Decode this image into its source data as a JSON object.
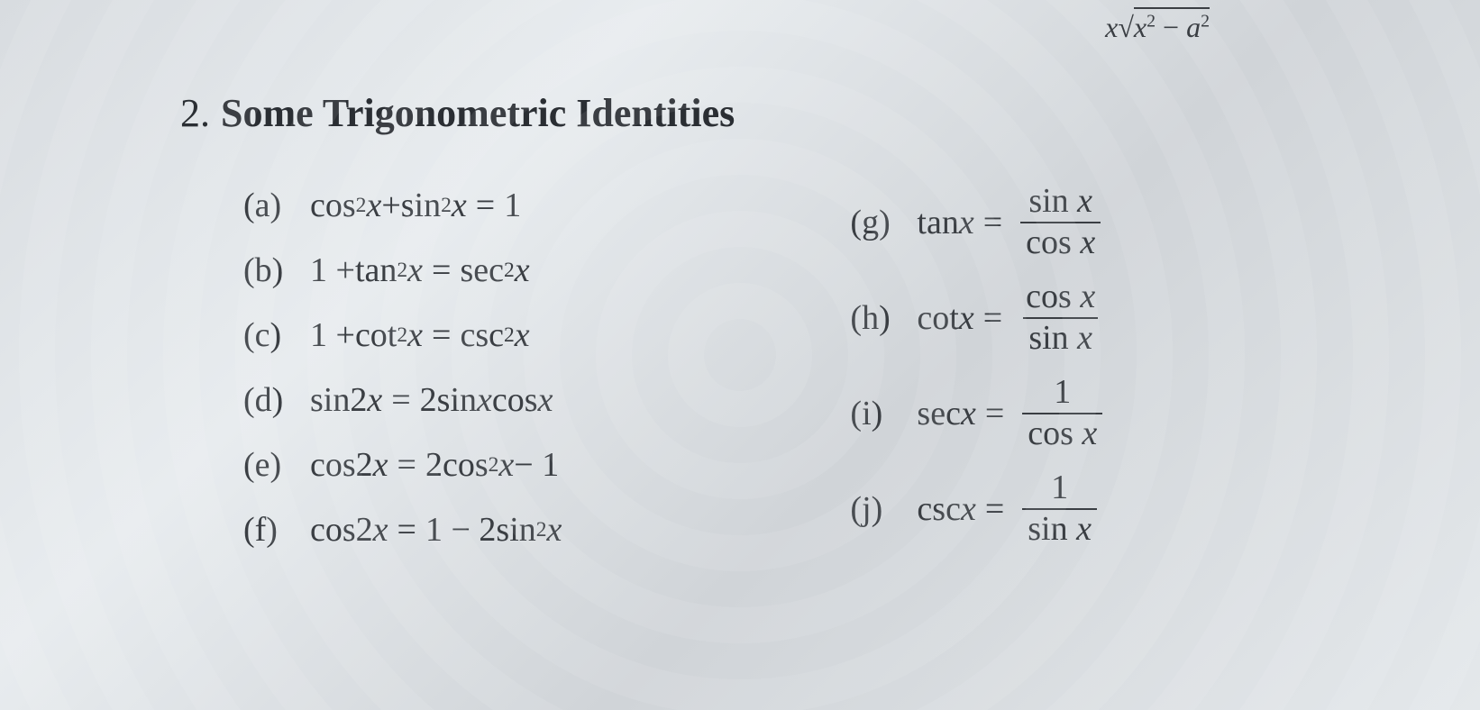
{
  "top_fragment": {
    "prefix_var": "x",
    "inner_var": "x",
    "inner_exp": "2",
    "minus": "−",
    "a_var": "a",
    "a_exp": "2"
  },
  "section": {
    "number": "2.",
    "title": "Some Trigonometric Identities"
  },
  "left_items": [
    {
      "label": "(a)",
      "lhs_a": "cos",
      "lhs_a_exp": "2",
      "lhs_a_var": "x",
      "plus": " + ",
      "lhs_b": "sin",
      "lhs_b_exp": "2",
      "lhs_b_var": "x",
      "eq": " = ",
      "rhs": "1"
    },
    {
      "label": "(b)",
      "lhs_const": "1 + ",
      "lhs_a": "tan",
      "lhs_a_exp": "2",
      "lhs_a_var": "x",
      "eq": " = ",
      "rhs_fn": "sec",
      "rhs_exp": "2",
      "rhs_var": "x"
    },
    {
      "label": "(c)",
      "lhs_const": "1 + ",
      "lhs_a": "cot",
      "lhs_a_exp": "2",
      "lhs_a_var": "x",
      "eq": " = ",
      "rhs_fn": "csc",
      "rhs_exp": "2",
      "rhs_var": "x"
    },
    {
      "label": "(d)",
      "lhs_fn": "sin",
      "lhs_arg": " 2",
      "lhs_var": "x",
      "eq": " = ",
      "rhs_coef": "2 ",
      "rhs_a": "sin ",
      "rhs_a_var": "x",
      "rhs_b": " cos ",
      "rhs_b_var": "x"
    },
    {
      "label": "(e)",
      "lhs_fn": "cos",
      "lhs_arg": " 2",
      "lhs_var": "x",
      "eq": " = ",
      "rhs_coef": "2 ",
      "rhs_fn": "cos",
      "rhs_exp": "2",
      "rhs_var": "x",
      "rhs_tail": " − 1"
    },
    {
      "label": "(f)",
      "lhs_fn": "cos",
      "lhs_arg": " 2",
      "lhs_var": "x",
      "eq": " = ",
      "rhs_pre": "1 − 2 ",
      "rhs_fn": "sin",
      "rhs_exp": "2",
      "rhs_var": "x"
    }
  ],
  "right_items": [
    {
      "label": "(g)",
      "lhs_fn": "tan ",
      "lhs_var": "x",
      "eq": " = ",
      "num_fn": "sin ",
      "num_var": "x",
      "den_fn": "cos ",
      "den_var": "x"
    },
    {
      "label": "(h)",
      "lhs_fn": "cot ",
      "lhs_var": "x",
      "eq": " = ",
      "num_fn": "cos ",
      "num_var": "x",
      "den_fn": "sin ",
      "den_var": "x"
    },
    {
      "label": "(i)",
      "lhs_fn": "sec ",
      "lhs_var": "x",
      "eq": " = ",
      "num_plain": "1",
      "den_fn": "cos ",
      "den_var": "x"
    },
    {
      "label": "(j)",
      "lhs_fn": "csc ",
      "lhs_var": "x",
      "eq": " = ",
      "num_plain": "1",
      "den_fn": "sin ",
      "den_var": "x"
    }
  ],
  "colors": {
    "text": "#2a2e33",
    "math": "#3a3e43",
    "bg_light": "#e8ecef",
    "bg_dark": "#d0d4d8"
  },
  "fonts": {
    "title_size": 44,
    "item_size": 38,
    "family": "Times New Roman"
  }
}
